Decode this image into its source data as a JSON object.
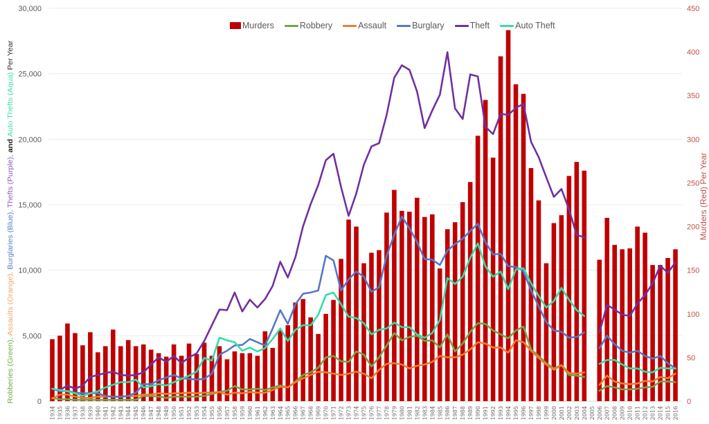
{
  "chart_data": {
    "type": "bar",
    "combo": "bar-and-line",
    "title": "",
    "xlabel": "",
    "categories": [
      "1934",
      "1935",
      "1936",
      "1937",
      "1938",
      "1939",
      "1940",
      "1941",
      "1942",
      "1943",
      "1944",
      "1945",
      "1946",
      "1947",
      "1948",
      "1949",
      "1950",
      "1951",
      "1952",
      "1953",
      "1954",
      "1955",
      "1956",
      "1957",
      "1958",
      "1959",
      "1960",
      "1961",
      "1962",
      "1963",
      "1964",
      "1965",
      "1966",
      "1967",
      "1968",
      "1969",
      "1970",
      "1971",
      "1972",
      "1973",
      "1974",
      "1975",
      "1976",
      "1977",
      "1978",
      "1979",
      "1980",
      "1981",
      "1982",
      "1983",
      "1984",
      "1985",
      "1986",
      "1987",
      "1988",
      "1989",
      "1990",
      "1991",
      "1992",
      "1993",
      "1994",
      "1995",
      "1996",
      "1997",
      "1998",
      "1999",
      "2000",
      "2001",
      "2002",
      "2003",
      "2004",
      "2005",
      "2006",
      "2007",
      "2008",
      "2009",
      "2010",
      "2011",
      "2012",
      "2013",
      "2014",
      "2015",
      "2016"
    ],
    "series": [
      {
        "name": "Murders",
        "chart_type": "bar",
        "axis": "right",
        "color": "#C00000",
        "values": [
          71,
          75,
          89,
          78,
          64,
          79,
          56,
          63,
          82,
          63,
          70,
          63,
          65,
          59,
          55,
          51,
          65,
          52,
          66,
          54,
          67,
          52,
          63,
          48,
          57,
          55,
          55,
          52,
          80,
          61,
          81,
          87,
          113,
          117,
          96,
          77,
          100,
          116,
          163,
          208,
          200,
          158,
          170,
          173,
          216,
          242,
          218,
          217,
          233,
          211,
          214,
          152,
          197,
          205,
          228,
          251,
          304,
          345,
          279,
          395,
          425,
          363,
          352,
          267,
          230,
          158,
          204,
          213,
          258,
          274,
          264,
          null,
          162,
          210,
          179,
          174,
          175,
          200,
          193,
          156,
          156,
          164,
          174
        ]
      },
      {
        "name": "Robbery",
        "chart_type": "line",
        "axis": "left",
        "color": "#76A44A",
        "values": [
          250,
          150,
          150,
          100,
          100,
          100,
          100,
          100,
          100,
          100,
          100,
          100,
          400,
          400,
          350,
          250,
          350,
          350,
          350,
          350,
          400,
          550,
          700,
          800,
          1150,
          900,
          900,
          950,
          850,
          1050,
          1200,
          1050,
          1500,
          2000,
          2200,
          2550,
          3350,
          3450,
          3050,
          3000,
          3800,
          3550,
          2650,
          3350,
          4250,
          5200,
          4650,
          4900,
          5000,
          4600,
          4650,
          4100,
          5100,
          3800,
          4400,
          5300,
          5950,
          5900,
          5400,
          5100,
          4800,
          5400,
          5700,
          3950,
          3450,
          2900,
          2500,
          2750,
          2000,
          1950,
          1850,
          null,
          800,
          1150,
          1050,
          900,
          900,
          950,
          1050,
          1100,
          1500,
          1500,
          1450
        ]
      },
      {
        "name": "Assault",
        "chart_type": "line",
        "axis": "left",
        "color": "#ED7D31",
        "values": [
          200,
          500,
          500,
          350,
          250,
          250,
          350,
          350,
          350,
          350,
          400,
          400,
          500,
          500,
          600,
          550,
          600,
          600,
          650,
          600,
          650,
          650,
          700,
          500,
          650,
          600,
          700,
          650,
          650,
          850,
          1100,
          1050,
          1450,
          1750,
          2000,
          2250,
          2200,
          2100,
          2000,
          2100,
          2250,
          2100,
          1750,
          2400,
          2850,
          2900,
          2800,
          2500,
          2700,
          2800,
          3000,
          3450,
          3350,
          3350,
          3550,
          3950,
          4500,
          4400,
          4100,
          4100,
          3700,
          4650,
          4500,
          3850,
          3300,
          2800,
          2400,
          2750,
          2150,
          2100,
          2200,
          null,
          1250,
          1950,
          1500,
          1350,
          1300,
          1350,
          1550,
          1500,
          1850,
          1750,
          2100
        ]
      },
      {
        "name": "Burglary",
        "chart_type": "line",
        "axis": "left",
        "color": "#5577C6",
        "values": [
          950,
          750,
          800,
          650,
          600,
          600,
          600,
          400,
          350,
          350,
          400,
          650,
          1300,
          1300,
          1600,
          1800,
          2000,
          1750,
          1700,
          1650,
          1700,
          2100,
          3550,
          3850,
          4250,
          4300,
          4750,
          4500,
          4250,
          5550,
          6950,
          5900,
          7400,
          8200,
          8300,
          8450,
          11100,
          10750,
          8450,
          9300,
          9900,
          9500,
          8350,
          8700,
          11100,
          12700,
          14100,
          13200,
          12150,
          10850,
          10800,
          10400,
          11500,
          12000,
          12400,
          13000,
          13550,
          12150,
          11200,
          11250,
          10300,
          10250,
          9950,
          8450,
          7250,
          6050,
          5400,
          5300,
          4850,
          4900,
          5250,
          null,
          4050,
          5000,
          4350,
          3850,
          3700,
          3850,
          3450,
          3250,
          3450,
          2900,
          2500
        ]
      },
      {
        "name": "Theft",
        "chart_type": "line",
        "axis": "left",
        "color": "#7030A0",
        "values": [
          950,
          850,
          1200,
          950,
          1200,
          1850,
          2000,
          2150,
          2250,
          2000,
          1950,
          2000,
          2200,
          2800,
          3350,
          3000,
          3450,
          2900,
          3350,
          3650,
          4600,
          5800,
          7000,
          6950,
          8300,
          6850,
          7750,
          7150,
          7800,
          8800,
          10650,
          9450,
          11000,
          13350,
          15050,
          16500,
          18400,
          18900,
          16350,
          14150,
          15850,
          18050,
          19450,
          19700,
          21850,
          24700,
          25650,
          25300,
          23650,
          20850,
          22200,
          23400,
          26650,
          22350,
          21550,
          24950,
          24800,
          20950,
          20400,
          21950,
          21850,
          22400,
          22700,
          19800,
          18650,
          17100,
          15600,
          16200,
          14650,
          12700,
          12500,
          null,
          5250,
          7350,
          7000,
          6600,
          6500,
          7450,
          8100,
          9000,
          10350,
          9800,
          10600
        ]
      },
      {
        "name": "Auto Theft",
        "chart_type": "line",
        "axis": "left",
        "color": "#33DDAA",
        "values": [
          950,
          850,
          750,
          600,
          400,
          600,
          750,
          1050,
          1250,
          1450,
          1450,
          1650,
          1050,
          1150,
          1300,
          1200,
          1450,
          1700,
          1950,
          2250,
          3300,
          3100,
          4850,
          4650,
          4500,
          3850,
          4100,
          3800,
          4050,
          4750,
          5550,
          4600,
          5450,
          5800,
          5800,
          6600,
          8100,
          8300,
          7400,
          6450,
          6350,
          5950,
          5100,
          5450,
          5550,
          6000,
          5650,
          5650,
          5100,
          4850,
          5200,
          6200,
          9400,
          8950,
          9500,
          10950,
          12050,
          10300,
          9500,
          9900,
          8550,
          10050,
          10150,
          9000,
          8050,
          7150,
          7650,
          8650,
          7750,
          6950,
          6500,
          null,
          2850,
          3150,
          3150,
          2800,
          2500,
          2500,
          2250,
          2200,
          2550,
          2500,
          2500
        ]
      }
    ],
    "ylabel": "Robberies (Green), Assaults (Orange), Burglaries (Blue), Thefts (Purple), and Auto Thefts (Aqua) Per Year",
    "ylabel_segments": [
      {
        "text": "Robberies (Green), ",
        "color": "#70AD47",
        "bold": false
      },
      {
        "text": "Assaults (Orange), ",
        "color": "#F0A46E",
        "bold": false
      },
      {
        "text": "Burglaries (Blue), ",
        "color": "#5B7FC7",
        "bold": false
      },
      {
        "text": "Thefts (Purple), ",
        "color": "#8F5CC0",
        "bold": false
      },
      {
        "text": "and ",
        "color": "#222222",
        "bold": true
      },
      {
        "text": "Auto Thefts (Aqua) ",
        "color": "#3EDDB0",
        "bold": false
      },
      {
        "text": "Per Year",
        "color": "#333333",
        "bold": false
      }
    ],
    "y2label": "Murders (Red) Per Year",
    "y2label_color": "#C0504D",
    "ylim": [
      0,
      30000
    ],
    "yticks": [
      0,
      5000,
      10000,
      15000,
      20000,
      25000,
      30000
    ],
    "ytick_labels": [
      "0",
      "5,000",
      "10,000",
      "15,000",
      "20,000",
      "25,000",
      "30,000"
    ],
    "y2lim": [
      0,
      450
    ],
    "yticks2": [
      0,
      50,
      100,
      150,
      200,
      250,
      300,
      350,
      400,
      450
    ],
    "ytick2_labels": [
      "0",
      "50",
      "100",
      "150",
      "200",
      "250",
      "300",
      "350",
      "400",
      "450"
    ],
    "grid": true,
    "legend": {
      "position": "top-center"
    }
  }
}
